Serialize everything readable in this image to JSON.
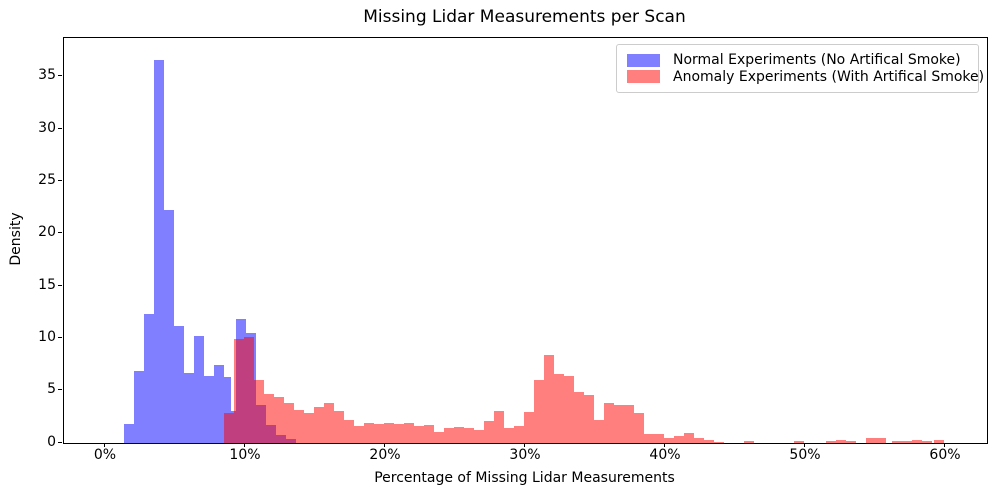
{
  "title": "Missing Lidar Measurements per Scan",
  "axes": {
    "x_label": "Percentage of Missing Lidar Measurements",
    "y_label": "Density",
    "x_ticks": [
      {
        "value": 0,
        "label": "0%"
      },
      {
        "value": 10,
        "label": "10%"
      },
      {
        "value": 20,
        "label": "20%"
      },
      {
        "value": 30,
        "label": "30%"
      },
      {
        "value": 40,
        "label": "40%"
      },
      {
        "value": 50,
        "label": "50%"
      },
      {
        "value": 60,
        "label": "60%"
      }
    ],
    "y_ticks": [
      {
        "value": 0,
        "label": "0"
      },
      {
        "value": 5,
        "label": "5"
      },
      {
        "value": 10,
        "label": "10"
      },
      {
        "value": 15,
        "label": "15"
      },
      {
        "value": 20,
        "label": "20"
      },
      {
        "value": 25,
        "label": "25"
      },
      {
        "value": 30,
        "label": "30"
      },
      {
        "value": 35,
        "label": "35"
      }
    ]
  },
  "legend": {
    "items": [
      {
        "label": "Normal Experiments (No Artifical Smoke)",
        "color": "rgba(0,0,255,0.5)"
      },
      {
        "label": "Anomaly Experiments (With Artifical Smoke)",
        "color": "rgba(255,0,0,0.5)"
      }
    ]
  },
  "chart_data": {
    "type": "histogram",
    "title": "Missing Lidar Measurements per Scan",
    "xlabel": "Percentage of Missing Lidar Measurements",
    "ylabel": "Density",
    "x_unit": "percent_missing",
    "y_unit": "density",
    "xlim": [
      -3.0,
      62.93
    ],
    "ylim": [
      0,
      38.7
    ],
    "grid": false,
    "legend_position": "upper right",
    "bar_format": "[x_start_pct, width_pct, density]",
    "series": [
      {
        "name": "Normal Experiments (No Artifical Smoke)",
        "color": "rgba(0,0,255,0.5)",
        "bars": [
          [
            1.3,
            0.714,
            1.8
          ],
          [
            2.01,
            0.714,
            6.9
          ],
          [
            2.73,
            0.714,
            12.3
          ],
          [
            3.44,
            0.714,
            36.6
          ],
          [
            4.16,
            0.714,
            22.3
          ],
          [
            4.87,
            0.714,
            11.2
          ],
          [
            5.59,
            0.714,
            6.7
          ],
          [
            6.3,
            0.714,
            10.2
          ],
          [
            7.01,
            0.714,
            6.4
          ],
          [
            7.73,
            0.714,
            7.5
          ],
          [
            8.44,
            0.5,
            6.3
          ],
          [
            8.94,
            0.36,
            3.1
          ],
          [
            9.3,
            0.714,
            11.9
          ],
          [
            10.01,
            0.714,
            10.5
          ],
          [
            10.73,
            0.714,
            3.6
          ],
          [
            11.44,
            0.714,
            1.7
          ],
          [
            12.16,
            0.714,
            0.8
          ],
          [
            12.87,
            0.714,
            0.35
          ]
        ]
      },
      {
        "name": "Anomaly Experiments (With Artifical Smoke)",
        "color": "rgba(255,0,0,0.5)",
        "bars": [
          [
            8.44,
            0.714,
            2.9
          ],
          [
            9.16,
            0.714,
            9.9
          ],
          [
            9.87,
            0.714,
            10.1
          ],
          [
            10.59,
            0.714,
            6.0
          ],
          [
            11.3,
            0.714,
            4.7
          ],
          [
            12.01,
            0.714,
            4.4
          ],
          [
            12.73,
            0.714,
            3.8
          ],
          [
            13.44,
            0.714,
            3.2
          ],
          [
            14.16,
            0.714,
            2.9
          ],
          [
            14.87,
            0.714,
            3.4
          ],
          [
            15.59,
            0.714,
            3.8
          ],
          [
            16.3,
            0.714,
            3.1
          ],
          [
            17.01,
            0.714,
            2.2
          ],
          [
            17.73,
            0.714,
            1.6
          ],
          [
            18.44,
            0.714,
            1.9
          ],
          [
            19.16,
            0.714,
            1.8
          ],
          [
            19.87,
            0.714,
            1.95
          ],
          [
            20.59,
            0.714,
            1.8
          ],
          [
            21.3,
            0.714,
            1.9
          ],
          [
            22.01,
            0.714,
            1.6
          ],
          [
            22.73,
            0.714,
            1.7
          ],
          [
            23.44,
            0.714,
            1.1
          ],
          [
            24.16,
            0.714,
            1.4
          ],
          [
            24.87,
            0.714,
            1.55
          ],
          [
            25.59,
            0.714,
            1.45
          ],
          [
            26.3,
            0.714,
            1.2
          ],
          [
            27.01,
            0.714,
            2.1
          ],
          [
            27.73,
            0.714,
            3.1
          ],
          [
            28.44,
            0.714,
            1.4
          ],
          [
            29.16,
            0.714,
            1.6
          ],
          [
            29.87,
            0.714,
            3.0
          ],
          [
            30.59,
            0.714,
            6.0
          ],
          [
            31.3,
            0.714,
            8.4
          ],
          [
            32.01,
            0.714,
            6.6
          ],
          [
            32.73,
            0.714,
            6.4
          ],
          [
            33.44,
            0.714,
            4.9
          ],
          [
            34.16,
            0.714,
            4.6
          ],
          [
            34.87,
            0.714,
            2.2
          ],
          [
            35.59,
            0.714,
            3.85
          ],
          [
            36.3,
            0.714,
            3.6
          ],
          [
            37.01,
            0.714,
            3.6
          ],
          [
            37.73,
            0.714,
            2.9
          ],
          [
            38.44,
            0.714,
            0.9
          ],
          [
            39.16,
            0.714,
            0.9
          ],
          [
            39.87,
            0.714,
            0.5
          ],
          [
            40.59,
            0.714,
            0.7
          ],
          [
            41.3,
            0.714,
            1.0
          ],
          [
            42.01,
            0.714,
            0.45
          ],
          [
            42.73,
            0.714,
            0.25
          ],
          [
            43.44,
            0.714,
            0.1
          ],
          [
            45.59,
            0.714,
            0.2
          ],
          [
            49.16,
            0.714,
            0.2
          ],
          [
            51.44,
            0.714,
            0.2
          ],
          [
            52.16,
            0.714,
            0.3
          ],
          [
            52.87,
            0.714,
            0.2
          ],
          [
            54.3,
            0.714,
            0.45
          ],
          [
            55.01,
            0.714,
            0.5
          ],
          [
            56.16,
            0.714,
            0.2
          ],
          [
            56.87,
            0.714,
            0.2
          ],
          [
            57.59,
            0.714,
            0.3
          ],
          [
            58.3,
            0.714,
            0.15
          ],
          [
            59.16,
            0.714,
            0.25
          ]
        ]
      }
    ]
  }
}
